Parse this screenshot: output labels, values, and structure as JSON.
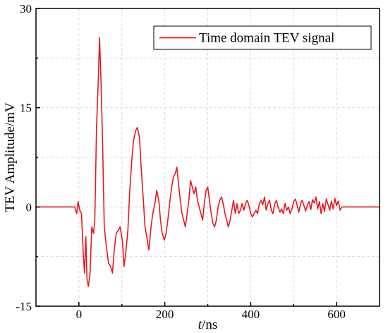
{
  "chart_data": {
    "type": "line",
    "xlabel_italic": "t",
    "xlabel_unit": "/ns",
    "ylabel": "TEV Amplitude/mV",
    "xlim": [
      -100,
      700
    ],
    "ylim": [
      -15,
      30
    ],
    "x_ticks": [
      0,
      200,
      400,
      600
    ],
    "y_ticks": [
      -15,
      0,
      15,
      30
    ],
    "grid": true,
    "legend_position": "top-right",
    "series": [
      {
        "name": "Time domain TEV signal",
        "color": "#e8191f",
        "points": [
          [
            -100,
            0
          ],
          [
            -10,
            0
          ],
          [
            -5,
            -1
          ],
          [
            -2,
            0.8
          ],
          [
            2,
            -0.5
          ],
          [
            6,
            -1
          ],
          [
            10,
            -7
          ],
          [
            13,
            -10
          ],
          [
            16,
            -4.5
          ],
          [
            19,
            -11
          ],
          [
            22,
            -12
          ],
          [
            26,
            -10
          ],
          [
            30,
            -3
          ],
          [
            34,
            -4
          ],
          [
            37,
            -2
          ],
          [
            41,
            12
          ],
          [
            45,
            19
          ],
          [
            48,
            25.6
          ],
          [
            51,
            20
          ],
          [
            55,
            10
          ],
          [
            59,
            -3
          ],
          [
            64,
            -6
          ],
          [
            69,
            -8.5
          ],
          [
            74,
            -9
          ],
          [
            78,
            -10
          ],
          [
            83,
            -6
          ],
          [
            87,
            -4
          ],
          [
            92,
            -3.5
          ],
          [
            96,
            -3
          ],
          [
            101,
            -5
          ],
          [
            105,
            -9
          ],
          [
            109,
            -7
          ],
          [
            114,
            -3.5
          ],
          [
            118,
            2
          ],
          [
            123,
            7
          ],
          [
            127,
            10
          ],
          [
            132,
            11.5
          ],
          [
            136,
            12
          ],
          [
            141,
            10.5
          ],
          [
            145,
            6
          ],
          [
            150,
            1
          ],
          [
            154,
            -3
          ],
          [
            159,
            -5
          ],
          [
            163,
            -6.5
          ],
          [
            168,
            -3
          ],
          [
            172,
            -1
          ],
          [
            177,
            0.5
          ],
          [
            181,
            2.5
          ],
          [
            186,
            1
          ],
          [
            190,
            -2
          ],
          [
            194,
            -4
          ],
          [
            199,
            -5
          ],
          [
            203,
            -4
          ],
          [
            207,
            -2
          ],
          [
            212,
            1
          ],
          [
            216,
            3
          ],
          [
            220,
            4.5
          ],
          [
            224,
            5
          ],
          [
            228,
            6
          ],
          [
            232,
            3.5
          ],
          [
            236,
            1
          ],
          [
            240,
            -1
          ],
          [
            244,
            -2
          ],
          [
            248,
            -3
          ],
          [
            252,
            -1
          ],
          [
            256,
            1
          ],
          [
            260,
            4
          ],
          [
            264,
            3
          ],
          [
            268,
            2
          ],
          [
            272,
            3
          ],
          [
            276,
            1
          ],
          [
            280,
            0
          ],
          [
            284,
            -1
          ],
          [
            288,
            -2
          ],
          [
            292,
            0.5
          ],
          [
            296,
            2.5
          ],
          [
            300,
            3
          ],
          [
            304,
            1
          ],
          [
            308,
            -1
          ],
          [
            312,
            -2.5
          ],
          [
            316,
            -3
          ],
          [
            320,
            -2
          ],
          [
            324,
            0
          ],
          [
            328,
            1
          ],
          [
            332,
            1.5
          ],
          [
            336,
            0.5
          ],
          [
            340,
            -1
          ],
          [
            344,
            -2
          ],
          [
            348,
            -3
          ],
          [
            352,
            -2
          ],
          [
            356,
            -0.5
          ],
          [
            360,
            1
          ],
          [
            364,
            -1
          ],
          [
            368,
            0.5
          ],
          [
            372,
            -1
          ],
          [
            376,
            -0.5
          ],
          [
            380,
            0.5
          ],
          [
            384,
            -0.5
          ],
          [
            388,
            0.5
          ],
          [
            392,
            1
          ],
          [
            396,
            0.2
          ],
          [
            400,
            -1
          ],
          [
            404,
            -1.5
          ],
          [
            408,
            -1
          ],
          [
            412,
            -0.5
          ],
          [
            416,
            -1
          ],
          [
            420,
            0.5
          ],
          [
            424,
            1
          ],
          [
            428,
            0.3
          ],
          [
            432,
            1.5
          ],
          [
            436,
            -0.5
          ],
          [
            440,
            0.5
          ],
          [
            444,
            1
          ],
          [
            448,
            -0.5
          ],
          [
            452,
            -1
          ],
          [
            456,
            0.5
          ],
          [
            460,
            1
          ],
          [
            464,
            0
          ],
          [
            468,
            -0.8
          ],
          [
            472,
            -0.3
          ],
          [
            476,
            -1
          ],
          [
            480,
            0.5
          ],
          [
            484,
            -0.5
          ],
          [
            488,
            0
          ],
          [
            492,
            -1
          ],
          [
            496,
            -0.3
          ],
          [
            500,
            0.8
          ],
          [
            504,
            1.2
          ],
          [
            508,
            0.3
          ],
          [
            512,
            -0.8
          ],
          [
            516,
            0.5
          ],
          [
            520,
            1
          ],
          [
            524,
            0.2
          ],
          [
            528,
            -0.6
          ],
          [
            532,
            0.3
          ],
          [
            536,
            0.8
          ],
          [
            540,
            -0.4
          ],
          [
            544,
            1.1
          ],
          [
            548,
            0.6
          ],
          [
            552,
            1.5
          ],
          [
            556,
            -0.3
          ],
          [
            560,
            0.8
          ],
          [
            564,
            -1
          ],
          [
            568,
            0.5
          ],
          [
            572,
            -0.7
          ],
          [
            576,
            1.2
          ],
          [
            580,
            0.4
          ],
          [
            584,
            -0.5
          ],
          [
            588,
            0.9
          ],
          [
            592,
            -0.3
          ],
          [
            596,
            1.3
          ],
          [
            600,
            0.2
          ],
          [
            604,
            0.9
          ],
          [
            608,
            -0.5
          ],
          [
            612,
            0
          ],
          [
            700,
            0
          ]
        ]
      }
    ]
  }
}
